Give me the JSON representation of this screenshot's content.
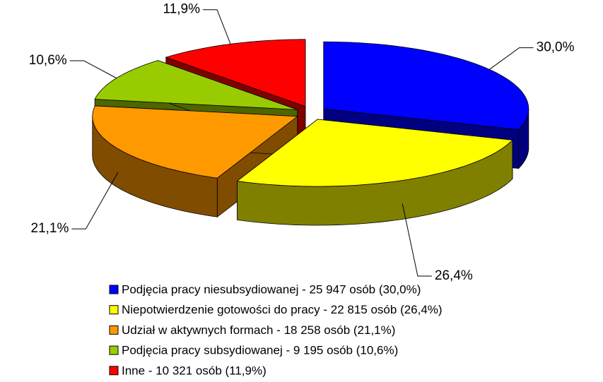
{
  "chart_data": {
    "type": "pie",
    "categories": [
      "Podjęcia pracy niesubsydiowanej - 25 947 osób (30,0%)",
      "Niepotwierdzenie gotowości do pracy - 22 815 osób (26,4%)",
      "Udział w aktywnych formach - 18 258 osób (21,1%)",
      "Podjęcia pracy subsydiowanej - 9 195 osób (10,6%)",
      "Inne - 10 321 osób (11,9%)"
    ],
    "values": [
      30.0,
      26.4,
      21.1,
      10.6,
      11.9
    ],
    "value_labels": [
      "30,0%",
      "26,4%",
      "21,1%",
      "10,6%",
      "11,9%"
    ],
    "colors": [
      "#0000ff",
      "#ffff00",
      "#ff9900",
      "#99cc00",
      "#ff0000"
    ],
    "side_colors": [
      "#000080",
      "#808000",
      "#804c00",
      "#4d6600",
      "#800000"
    ]
  }
}
